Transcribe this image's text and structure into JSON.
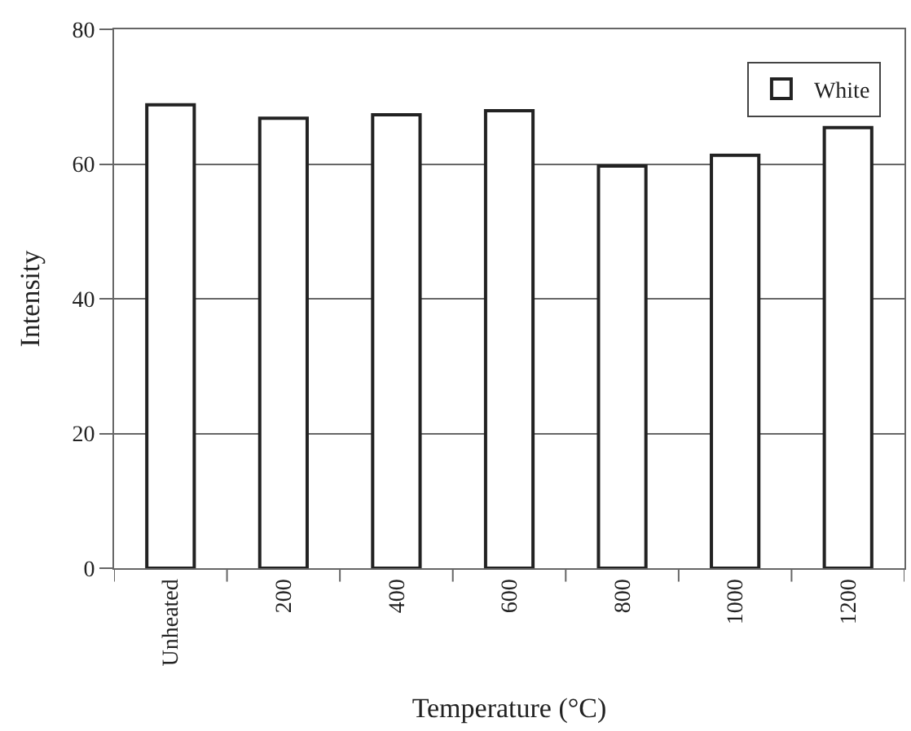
{
  "chart_data": {
    "type": "bar",
    "xlabel": "Temperature (°C)",
    "ylabel": "Intensity",
    "categories": [
      "Unheated",
      "200",
      "400",
      "600",
      "800",
      "1000",
      "1200"
    ],
    "series": [
      {
        "name": "White",
        "color": "#ffffff",
        "values": [
          68.8,
          66.8,
          67.3,
          67.9,
          59.7,
          61.3,
          65.4
        ]
      }
    ],
    "ylim": [
      0,
      80
    ],
    "yticks": [
      0,
      20,
      40,
      60,
      80
    ],
    "grid": "y",
    "legend": "top right"
  }
}
